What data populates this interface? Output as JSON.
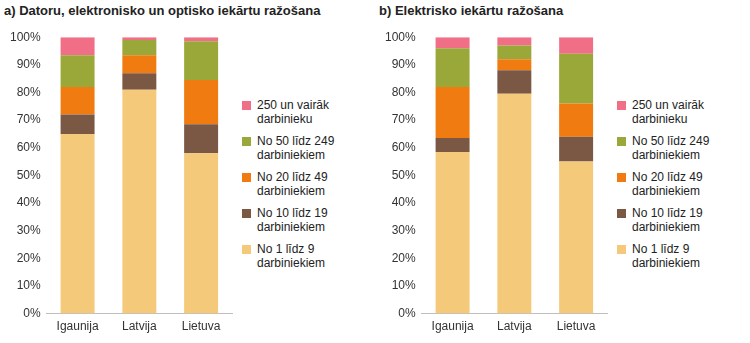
{
  "chart_data": [
    {
      "type": "bar",
      "stacked": true,
      "grid": false,
      "legend": "right",
      "title": "a) Datoru, elektronisko un optisko iekārtu ražošana",
      "categories": [
        "Igaunija",
        "Latvija",
        "Lietuva"
      ],
      "series": [
        {
          "name": "No 1 līdz 9 darbiniekiem",
          "color": "#f5c97a",
          "values": [
            65,
            81,
            58
          ]
        },
        {
          "name": "No 10 līdz 19 darbiniekiem",
          "color": "#7b5844",
          "values": [
            7,
            6,
            10.5
          ]
        },
        {
          "name": "No 20 līdz 49 darbiniekiem",
          "color": "#f07b10",
          "values": [
            10,
            6.5,
            16
          ]
        },
        {
          "name": "No 50 līdz 249 darbiniekiem",
          "color": "#9aa83a",
          "values": [
            11.5,
            5.5,
            14
          ]
        },
        {
          "name": "250 un vairāk darbinieku",
          "color": "#f06f86",
          "values": [
            6.5,
            1,
            1.5
          ]
        }
      ],
      "ylim": [
        0,
        100
      ],
      "yticks": [
        {
          "value": 0,
          "label": "0%"
        },
        {
          "value": 10,
          "label": "10%"
        },
        {
          "value": 20,
          "label": "20%"
        },
        {
          "value": 30,
          "label": "30%"
        },
        {
          "value": 40,
          "label": "40%"
        },
        {
          "value": 50,
          "label": "50%"
        },
        {
          "value": 60,
          "label": "60%"
        },
        {
          "value": 70,
          "label": "70%"
        },
        {
          "value": 80,
          "label": "80%"
        },
        {
          "value": 90,
          "label": "90%"
        },
        {
          "value": 100,
          "label": "100%"
        }
      ]
    },
    {
      "type": "bar",
      "stacked": true,
      "grid": false,
      "legend": "right",
      "title": "b) Elektrisko iekārtu ražošana",
      "categories": [
        "Igaunija",
        "Latvija",
        "Lietuva"
      ],
      "series": [
        {
          "name": "No 1 līdz 9 darbiniekiem",
          "color": "#f5c97a",
          "values": [
            58.5,
            79.5,
            55
          ]
        },
        {
          "name": "No 10 līdz 19 darbiniekiem",
          "color": "#7b5844",
          "values": [
            5,
            8.5,
            9
          ]
        },
        {
          "name": "No 20 līdz 49 darbiniekiem",
          "color": "#f07b10",
          "values": [
            18.5,
            4,
            12
          ]
        },
        {
          "name": "No 50 līdz 249 darbiniekiem",
          "color": "#9aa83a",
          "values": [
            14,
            5,
            18
          ]
        },
        {
          "name": "250 un vairāk darbinieku",
          "color": "#f06f86",
          "values": [
            4,
            3,
            6
          ]
        }
      ],
      "ylim": [
        0,
        100
      ],
      "yticks": [
        {
          "value": 0,
          "label": "0%"
        },
        {
          "value": 10,
          "label": "10%"
        },
        {
          "value": 20,
          "label": "20%"
        },
        {
          "value": 30,
          "label": "30%"
        },
        {
          "value": 40,
          "label": "40%"
        },
        {
          "value": 50,
          "label": "50%"
        },
        {
          "value": 60,
          "label": "60%"
        },
        {
          "value": 70,
          "label": "70%"
        },
        {
          "value": 80,
          "label": "80%"
        },
        {
          "value": 90,
          "label": "90%"
        },
        {
          "value": 100,
          "label": "100%"
        }
      ]
    }
  ]
}
